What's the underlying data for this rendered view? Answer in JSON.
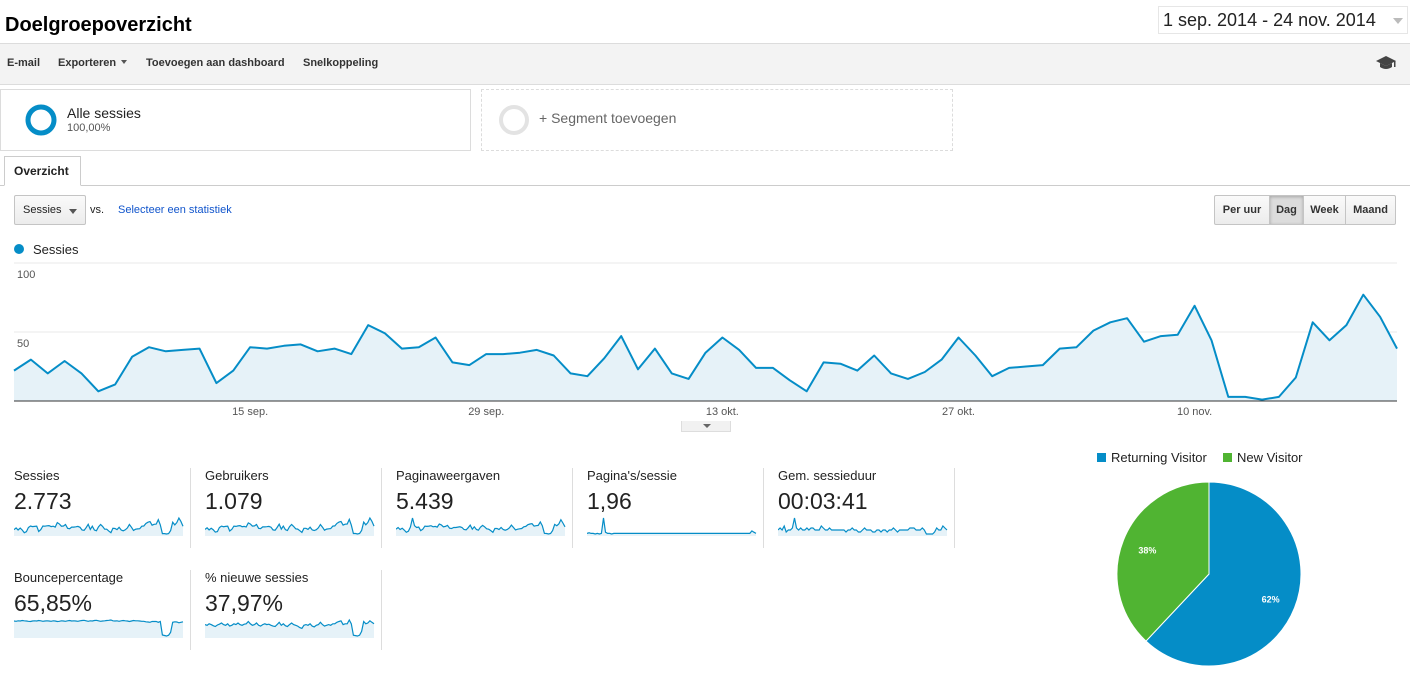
{
  "header": {
    "title": "Doelgroepoverzicht",
    "date_range": "1 sep. 2014 - 24 nov. 2014"
  },
  "toolbar": {
    "email": "E-mail",
    "export": "Exporteren",
    "add_dashboard": "Toevoegen aan dashboard",
    "shortcut": "Snelkoppeling"
  },
  "segments": {
    "active": {
      "name": "Alle sessies",
      "pct": "100,00%"
    },
    "add": "+ Segment toevoegen"
  },
  "tabs": {
    "overview": "Overzicht"
  },
  "controls": {
    "metric": "Sessies",
    "vs": "vs.",
    "select_stat": "Selecteer een statistiek",
    "periods": [
      "Per uur",
      "Dag",
      "Week",
      "Maand"
    ],
    "active_period": "Dag"
  },
  "colors": {
    "series": "#058dc7",
    "fill": "#e6f2f8",
    "returning": "#058dc7",
    "new": "#50b432",
    "link": "#1155cc"
  },
  "chart_data": [
    {
      "type": "area",
      "series": [
        {
          "name": "Sessies",
          "values": [
            22,
            30,
            20,
            29,
            20,
            7,
            12,
            32,
            39,
            36,
            37,
            38,
            13,
            22,
            39,
            38,
            40,
            41,
            36,
            38,
            34,
            55,
            49,
            38,
            39,
            46,
            28,
            26,
            34,
            34,
            35,
            37,
            33,
            20,
            18,
            31,
            47,
            23,
            38,
            20,
            16,
            35,
            46,
            37,
            24,
            24,
            15,
            7,
            28,
            27,
            22,
            33,
            20,
            16,
            21,
            30,
            46,
            33,
            18,
            24,
            25,
            26,
            38,
            39,
            51,
            57,
            60,
            43,
            47,
            48,
            69,
            44,
            3,
            3,
            1,
            3,
            17,
            57,
            44,
            55,
            77,
            61,
            38
          ],
          "color": "#058dc7"
        }
      ],
      "x_labels": [
        "15 sep.",
        "29 sep.",
        "13 okt.",
        "27 okt.",
        "10 nov."
      ],
      "y_ticks": [
        "100",
        "50"
      ],
      "ylim": [
        0,
        100
      ]
    },
    {
      "type": "pie",
      "labels": [
        "Returning Visitor",
        "New Visitor"
      ],
      "values": [
        62,
        38
      ],
      "value_labels": [
        "62%",
        "38%"
      ],
      "colors": [
        "#058dc7",
        "#50b432"
      ]
    }
  ],
  "metrics": [
    {
      "label": "Sessies",
      "value": "2.773",
      "spark": [
        22,
        30,
        20,
        29,
        20,
        7,
        12,
        32,
        39,
        36,
        37,
        38,
        13,
        22,
        39,
        38,
        40,
        41,
        36,
        38,
        34,
        55,
        49,
        38,
        39,
        46,
        28,
        26,
        34,
        34,
        35,
        37,
        33,
        20,
        18,
        31,
        47,
        23,
        38,
        20,
        16,
        35,
        46,
        37,
        24,
        24,
        15,
        7,
        28,
        27,
        22,
        33,
        20,
        16,
        21,
        30,
        46,
        33,
        18,
        24,
        25,
        26,
        38,
        39,
        51,
        57,
        60,
        43,
        47,
        48,
        69,
        44,
        3,
        3,
        1,
        3,
        17,
        57,
        44,
        55,
        77,
        61,
        38
      ]
    },
    {
      "label": "Gebruikers",
      "value": "1.079",
      "spark": [
        18,
        24,
        16,
        22,
        17,
        8,
        10,
        25,
        30,
        28,
        29,
        30,
        12,
        18,
        30,
        29,
        31,
        32,
        28,
        29,
        27,
        42,
        38,
        30,
        31,
        36,
        22,
        21,
        27,
        27,
        28,
        29,
        26,
        16,
        15,
        25,
        37,
        19,
        30,
        17,
        14,
        28,
        36,
        29,
        20,
        19,
        13,
        7,
        22,
        22,
        18,
        26,
        16,
        14,
        17,
        24,
        36,
        26,
        15,
        19,
        20,
        21,
        30,
        31,
        40,
        45,
        47,
        34,
        37,
        38,
        55,
        34,
        3,
        3,
        1,
        3,
        14,
        45,
        35,
        43,
        60,
        48,
        30
      ]
    },
    {
      "label": "Paginaweergaven",
      "value": "5.439",
      "spark": [
        30,
        40,
        28,
        36,
        25,
        12,
        18,
        42,
        95,
        50,
        40,
        42,
        22,
        30,
        48,
        46,
        48,
        50,
        44,
        46,
        42,
        60,
        55,
        44,
        46,
        52,
        36,
        34,
        40,
        40,
        42,
        44,
        40,
        28,
        26,
        38,
        54,
        30,
        44,
        28,
        24,
        42,
        52,
        44,
        32,
        30,
        22,
        12,
        34,
        34,
        28,
        40,
        28,
        24,
        28,
        38,
        54,
        40,
        26,
        30,
        32,
        34,
        44,
        46,
        56,
        60,
        62,
        48,
        50,
        52,
        72,
        50,
        6,
        5,
        2,
        5,
        22,
        58,
        50,
        60,
        85,
        66,
        44
      ]
    },
    {
      "label": "Pagina's/sessie",
      "value": "1,96",
      "spark": [
        2,
        2.1,
        2,
        2,
        1.9,
        2,
        1.9,
        2,
        4.5,
        2.2,
        2,
        2,
        1.9,
        2,
        2,
        2,
        2,
        2,
        2,
        2,
        2,
        2,
        2,
        2,
        2,
        2,
        2,
        2,
        2,
        2,
        2,
        2,
        2,
        2,
        2,
        2,
        2,
        2,
        2,
        2,
        2,
        2,
        2,
        2,
        2,
        2,
        2,
        2,
        2,
        2,
        2,
        2,
        2,
        2,
        2,
        2,
        2,
        2,
        2,
        2,
        2,
        2,
        2,
        2,
        2,
        2,
        2,
        2,
        2,
        2,
        2,
        2,
        2,
        2,
        2,
        2,
        2,
        2,
        2,
        2,
        2.4,
        2.2,
        2
      ]
    },
    {
      "label": "Gem. sessieduur",
      "value": "00:03:41",
      "spark": [
        3,
        4,
        3,
        5,
        2,
        3,
        3,
        4,
        9,
        4,
        3,
        4,
        3,
        3,
        4,
        3,
        4,
        4,
        3,
        3,
        3,
        5,
        4,
        3,
        3,
        4,
        3,
        3,
        3,
        3,
        3,
        3,
        3,
        2,
        3,
        3,
        4,
        3,
        3,
        2,
        2,
        3,
        4,
        3,
        3,
        3,
        2,
        2,
        3,
        3,
        2,
        3,
        3,
        2,
        3,
        3,
        4,
        3,
        2,
        3,
        3,
        3,
        3,
        3,
        4,
        4,
        4,
        3,
        3,
        3,
        4,
        3,
        1,
        1,
        1,
        1,
        2,
        4,
        3,
        3,
        5,
        4,
        3
      ]
    },
    {
      "label": "Bouncepercentage",
      "value": "65,85%",
      "spark": [
        65,
        64,
        66,
        65,
        67,
        66,
        65,
        64,
        63,
        65,
        66,
        65,
        67,
        66,
        64,
        65,
        66,
        65,
        64,
        66,
        65,
        63,
        64,
        66,
        65,
        64,
        66,
        67,
        65,
        66,
        65,
        64,
        66,
        67,
        68,
        66,
        64,
        66,
        65,
        67,
        68,
        66,
        64,
        65,
        66,
        67,
        68,
        69,
        66,
        65,
        66,
        64,
        66,
        67,
        66,
        65,
        63,
        65,
        67,
        66,
        66,
        65,
        64,
        64,
        62,
        61,
        60,
        63,
        63,
        63,
        60,
        63,
        10,
        8,
        6,
        9,
        20,
        60,
        62,
        61,
        58,
        60,
        62
      ]
    },
    {
      "label": "% nieuwe sessies",
      "value": "37,97%",
      "spark": [
        38,
        36,
        40,
        38,
        35,
        33,
        37,
        39,
        42,
        38,
        36,
        40,
        34,
        36,
        40,
        38,
        42,
        38,
        36,
        39,
        40,
        46,
        40,
        36,
        38,
        42,
        36,
        34,
        38,
        40,
        38,
        39,
        36,
        34,
        33,
        38,
        44,
        36,
        40,
        35,
        33,
        38,
        42,
        38,
        36,
        34,
        30,
        28,
        36,
        38,
        36,
        40,
        34,
        32,
        36,
        38,
        44,
        38,
        34,
        36,
        38,
        36,
        40,
        40,
        44,
        46,
        48,
        38,
        40,
        40,
        50,
        40,
        10,
        9,
        8,
        10,
        20,
        46,
        40,
        42,
        48,
        44,
        40
      ]
    }
  ],
  "pie_legend": {
    "returning": "Returning Visitor",
    "new": "New Visitor"
  }
}
